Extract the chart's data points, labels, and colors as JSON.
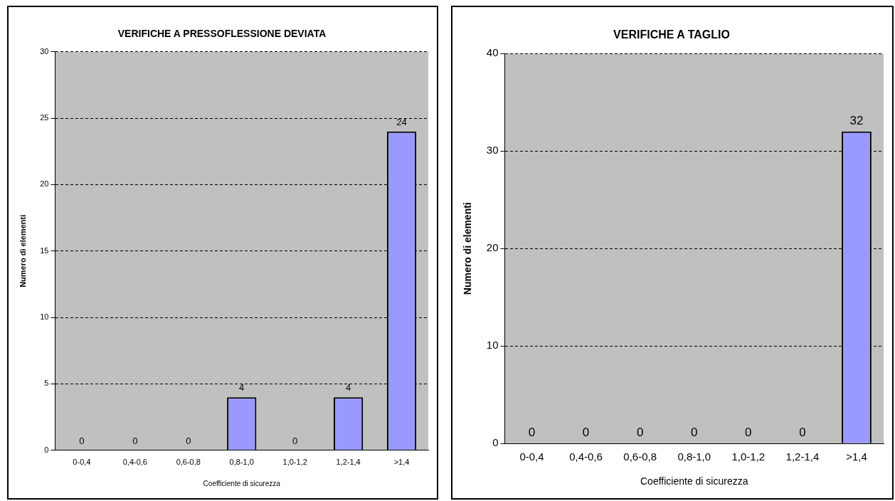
{
  "chart_data": [
    {
      "type": "bar",
      "title": "VERIFICHE A PRESSOFLESSIONE DEVIATA",
      "xlabel": "Coefficiente di sicurezza",
      "ylabel": "Numero di elementi",
      "categories": [
        "0-0,4",
        "0,4-0,6",
        "0,6-0,8",
        "0,8-1,0",
        "1,0-1,2",
        "1,2-1,4",
        ">1,4"
      ],
      "values": [
        0,
        0,
        0,
        4,
        0,
        4,
        24
      ],
      "color": "#9999ff",
      "ylim": [
        0,
        30
      ],
      "yticks": [
        0,
        5,
        10,
        15,
        20,
        25,
        30
      ],
      "grid": "y",
      "data_labels": true,
      "legend": false
    },
    {
      "type": "bar",
      "title": "VERIFICHE A TAGLIO",
      "xlabel": "Coefficiente di sicurezza",
      "ylabel": "Numero di elementi",
      "categories": [
        "0-0,4",
        "0,4-0,6",
        "0,6-0,8",
        "0,8-1,0",
        "1,0-1,2",
        "1,2-1,4",
        ">1,4"
      ],
      "values": [
        0,
        0,
        0,
        0,
        0,
        0,
        32
      ],
      "color": "#9999ff",
      "ylim": [
        0,
        40
      ],
      "yticks": [
        0,
        10,
        20,
        30,
        40
      ],
      "grid": "y",
      "data_labels": true,
      "legend": false
    }
  ]
}
